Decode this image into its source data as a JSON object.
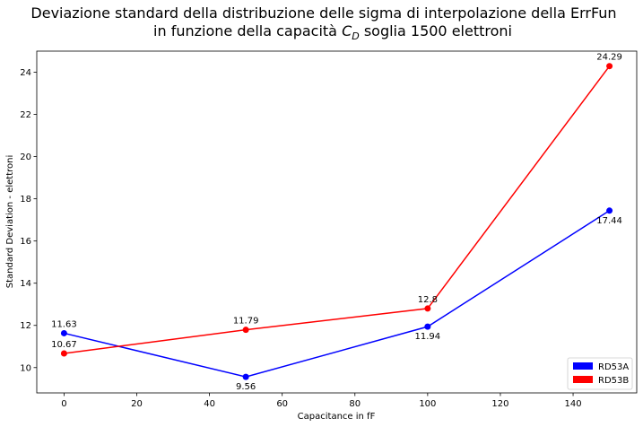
{
  "chart_data": {
    "type": "line",
    "title_line1": "Deviazione standard della distribuzione delle sigma di interpolazione della ErrFun",
    "title_line2_prefix": "in funzione della capacità ",
    "title_line2_symbol": "C",
    "title_line2_subscript": "D",
    "title_line2_suffix": " soglia 1500 elettroni",
    "xlabel": "Capacitance in fF",
    "ylabel": "Standard Deviation - elettroni",
    "xlim": [
      -7.5,
      157.5
    ],
    "ylim": [
      8.8,
      25.0
    ],
    "x_ticks": [
      0,
      20,
      40,
      60,
      80,
      100,
      120,
      140
    ],
    "y_ticks": [
      10,
      12,
      14,
      16,
      18,
      20,
      22,
      24
    ],
    "grid": false,
    "legend_position": "lower-right",
    "x": [
      0,
      50,
      100,
      150
    ],
    "series": [
      {
        "name": "RD53A",
        "color": "#0000ff",
        "values": [
          11.63,
          9.56,
          11.94,
          17.44
        ],
        "labels": [
          "11.63",
          "9.56",
          "11.94",
          "17.44"
        ],
        "label_side": [
          "above",
          "below",
          "below",
          "below"
        ]
      },
      {
        "name": "RD53B",
        "color": "#ff0000",
        "values": [
          10.67,
          11.79,
          12.8,
          24.29
        ],
        "labels": [
          "10.67",
          "11.79",
          "12.8",
          "24.29"
        ],
        "label_side": [
          "above",
          "above",
          "above",
          "above"
        ]
      }
    ]
  }
}
